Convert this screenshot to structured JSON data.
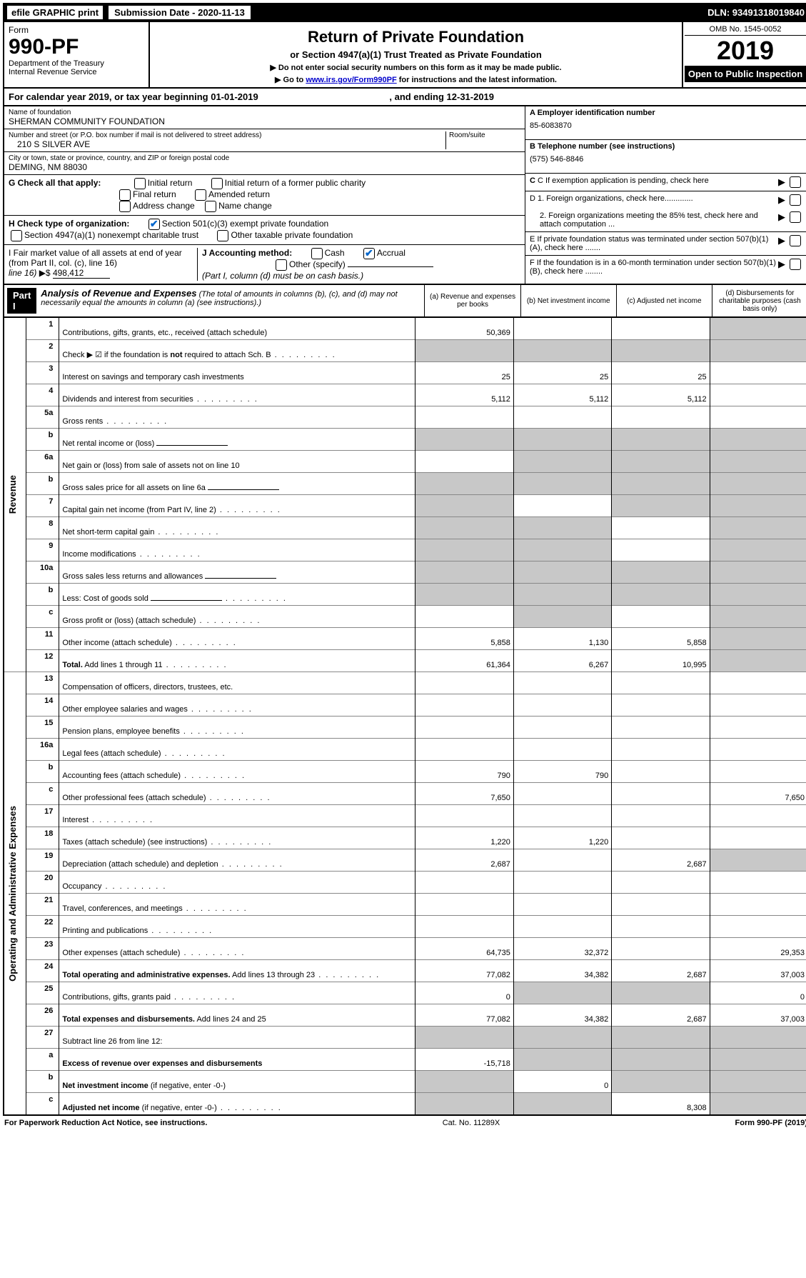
{
  "top": {
    "efile": "efile GRAPHIC print",
    "subdate_label": "Submission Date - 2020-11-13",
    "dln": "DLN: 93491318019840"
  },
  "head": {
    "form_word": "Form",
    "form_num": "990-PF",
    "dept": "Department of the Treasury",
    "irs": "Internal Revenue Service",
    "title": "Return of Private Foundation",
    "subtitle": "or Section 4947(a)(1) Trust Treated as Private Foundation",
    "note1": "▶ Do not enter social security numbers on this form as it may be made public.",
    "note2_pre": "▶ Go to ",
    "note2_link": "www.irs.gov/Form990PF",
    "note2_post": " for instructions and the latest information.",
    "omb": "OMB No. 1545-0052",
    "year": "2019",
    "open": "Open to Public Inspection"
  },
  "cal": {
    "text_pre": "For calendar year 2019, or tax year beginning 01-01-2019",
    "text_mid": ", and ending 12-31-2019"
  },
  "entity": {
    "name_label": "Name of foundation",
    "name": "SHERMAN COMMUNITY FOUNDATION",
    "addr_label": "Number and street (or P.O. box number if mail is not delivered to street address)",
    "room_label": "Room/suite",
    "addr": "210 S SILVER AVE",
    "city_label": "City or town, state or province, country, and ZIP or foreign postal code",
    "city": "DEMING, NM  88030",
    "a_label": "A Employer identification number",
    "a_val": "85-6083870",
    "b_label": "B Telephone number (see instructions)",
    "b_val": "(575) 546-8846",
    "c_label": "C If exemption application is pending, check here",
    "d1": "D 1. Foreign organizations, check here.............",
    "d2": "2. Foreign organizations meeting the 85% test, check here and attach computation ...",
    "e": "E  If private foundation status was terminated under section 507(b)(1)(A), check here .......",
    "f": "F  If the foundation is in a 60-month termination under section 507(b)(1)(B), check here ........"
  },
  "g": {
    "label": "G Check all that apply:",
    "opts": [
      "Initial return",
      "Initial return of a former public charity",
      "Final return",
      "Amended return",
      "Address change",
      "Name change"
    ]
  },
  "h": {
    "label": "H Check type of organization:",
    "o1": "Section 501(c)(3) exempt private foundation",
    "o2": "Section 4947(a)(1) nonexempt charitable trust",
    "o3": "Other taxable private foundation"
  },
  "i": {
    "label": "I Fair market value of all assets at end of year (from Part II, col. (c), line 16)",
    "arrow": "▶$",
    "val": "498,412"
  },
  "j": {
    "label": "J Accounting method:",
    "cash": "Cash",
    "accrual": "Accrual",
    "other": "Other (specify)",
    "note": "(Part I, column (d) must be on cash basis.)"
  },
  "part1": {
    "label": "Part I",
    "title": "Analysis of Revenue and Expenses",
    "desc": "(The total of amounts in columns (b), (c), and (d) may not necessarily equal the amounts in column (a) (see instructions).)",
    "cols": {
      "a": "(a)   Revenue and expenses per books",
      "b": "(b)  Net investment income",
      "c": "(c)  Adjusted net income",
      "d": "(d)  Disbursements for charitable purposes (cash basis only)"
    }
  },
  "side_labels": {
    "revenue": "Revenue",
    "expenses": "Operating and Administrative Expenses"
  },
  "rows": [
    {
      "n": "1",
      "d": "Contributions, gifts, grants, etc., received (attach schedule)",
      "a": "50,369",
      "shade_d": true
    },
    {
      "n": "2",
      "d": "Check ▶ ☑ if the foundation is <b>not</b> required to attach Sch. B",
      "dots": true,
      "shade_abcd": true
    },
    {
      "n": "3",
      "d": "Interest on savings and temporary cash investments",
      "a": "25",
      "b": "25",
      "c": "25"
    },
    {
      "n": "4",
      "d": "Dividends and interest from securities",
      "dots": true,
      "a": "5,112",
      "b": "5,112",
      "c": "5,112"
    },
    {
      "n": "5a",
      "d": "Gross rents",
      "dots": true
    },
    {
      "n": "b",
      "d": "Net rental income or (loss)",
      "inline": true,
      "shade_abcd": true
    },
    {
      "n": "6a",
      "d": "Net gain or (loss) from sale of assets not on line 10",
      "shade_bcd": true
    },
    {
      "n": "b",
      "d": "Gross sales price for all assets on line 6a",
      "inline": true,
      "shade_abcd": true
    },
    {
      "n": "7",
      "d": "Capital gain net income (from Part IV, line 2)",
      "dots": true,
      "shade_a": true,
      "shade_cd": true
    },
    {
      "n": "8",
      "d": "Net short-term capital gain",
      "dots": true,
      "shade_ab": true,
      "shade_d": true
    },
    {
      "n": "9",
      "d": "Income modifications",
      "dots": true,
      "shade_ab": true,
      "shade_d": true
    },
    {
      "n": "10a",
      "d": "Gross sales less returns and allowances",
      "inline": true,
      "shade_abcd": true
    },
    {
      "n": "b",
      "d": "Less: Cost of goods sold",
      "dots": true,
      "inline": true,
      "shade_abcd": true
    },
    {
      "n": "c",
      "d": "Gross profit or (loss) (attach schedule)",
      "dots": true,
      "shade_b": true,
      "shade_d": true
    },
    {
      "n": "11",
      "d": "Other income (attach schedule)",
      "dots": true,
      "a": "5,858",
      "b": "1,130",
      "c": "5,858",
      "shade_d": true
    },
    {
      "n": "12",
      "d": "<b>Total.</b> Add lines 1 through 11",
      "dots": true,
      "a": "61,364",
      "b": "6,267",
      "c": "10,995",
      "shade_d": true
    },
    {
      "n": "13",
      "d": "Compensation of officers, directors, trustees, etc."
    },
    {
      "n": "14",
      "d": "Other employee salaries and wages",
      "dots": true
    },
    {
      "n": "15",
      "d": "Pension plans, employee benefits",
      "dots": true
    },
    {
      "n": "16a",
      "d": "Legal fees (attach schedule)",
      "dots": true
    },
    {
      "n": "b",
      "d": "Accounting fees (attach schedule)",
      "dots": true,
      "a": "790",
      "b": "790"
    },
    {
      "n": "c",
      "d": "Other professional fees (attach schedule)",
      "dots": true,
      "a": "7,650",
      "d_": "7,650"
    },
    {
      "n": "17",
      "d": "Interest",
      "dots": true
    },
    {
      "n": "18",
      "d": "Taxes (attach schedule) (see instructions)",
      "dots": true,
      "a": "1,220",
      "b": "1,220"
    },
    {
      "n": "19",
      "d": "Depreciation (attach schedule) and depletion",
      "dots": true,
      "a": "2,687",
      "c": "2,687",
      "shade_d": true
    },
    {
      "n": "20",
      "d": "Occupancy",
      "dots": true
    },
    {
      "n": "21",
      "d": "Travel, conferences, and meetings",
      "dots": true
    },
    {
      "n": "22",
      "d": "Printing and publications",
      "dots": true
    },
    {
      "n": "23",
      "d": "Other expenses (attach schedule)",
      "dots": true,
      "a": "64,735",
      "b": "32,372",
      "d_": "29,353"
    },
    {
      "n": "24",
      "d": "<b>Total operating and administrative expenses.</b> Add lines 13 through 23",
      "dots": true,
      "a": "77,082",
      "b": "34,382",
      "c": "2,687",
      "d_": "37,003"
    },
    {
      "n": "25",
      "d": "Contributions, gifts, grants paid",
      "dots": true,
      "a": "0",
      "shade_bc": true,
      "d_": "0"
    },
    {
      "n": "26",
      "d": "<b>Total expenses and disbursements.</b> Add lines 24 and 25",
      "a": "77,082",
      "b": "34,382",
      "c": "2,687",
      "d_": "37,003"
    },
    {
      "n": "27",
      "d": "Subtract line 26 from line 12:",
      "shade_abcd": true
    },
    {
      "n": "a",
      "d": "<b>Excess of revenue over expenses and disbursements</b>",
      "a": "-15,718",
      "shade_bcd": true
    },
    {
      "n": "b",
      "d": "<b>Net investment income</b> (if negative, enter -0-)",
      "shade_a": true,
      "b": "0",
      "shade_cd": true
    },
    {
      "n": "c",
      "d": "<b>Adjusted net income</b> (if negative, enter -0-)",
      "dots": true,
      "shade_ab": true,
      "c": "8,308",
      "shade_d": true
    }
  ],
  "footer": {
    "left": "For Paperwork Reduction Act Notice, see instructions.",
    "mid": "Cat. No. 11289X",
    "right": "Form 990-PF (2019)"
  }
}
